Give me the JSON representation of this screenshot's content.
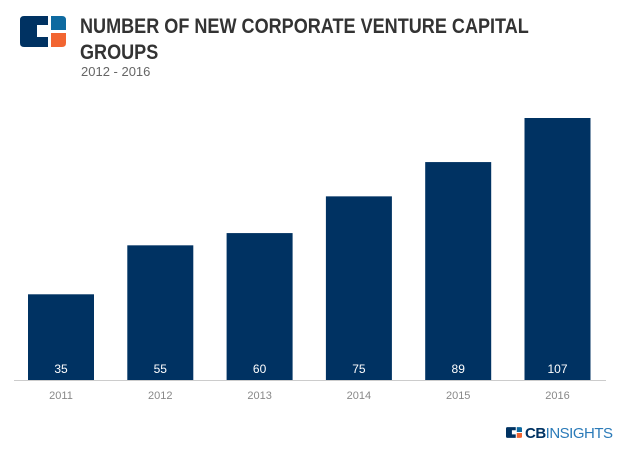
{
  "header": {
    "title_line1": "NUMBER OF NEW CORPORATE VENTURE CAPITAL",
    "title_line2": "GROUPS",
    "subtitle": "2012 - 2016"
  },
  "footer": {
    "brand_cb": "CB",
    "brand_insights": "INSIGHTS"
  },
  "colors": {
    "bar": "#003262",
    "logo_teal": "#0e6aa0",
    "logo_orange": "#f26531",
    "label": "#ffffff",
    "axis": "#888888"
  },
  "chart_data": {
    "type": "bar",
    "categories": [
      "2011",
      "2012",
      "2013",
      "2014",
      "2015",
      "2016"
    ],
    "values": [
      35,
      55,
      60,
      75,
      89,
      107
    ],
    "title": "NUMBER OF NEW CORPORATE VENTURE CAPITAL GROUPS",
    "subtitle": "2012 - 2016",
    "xlabel": "",
    "ylabel": "",
    "ylim": [
      0,
      107
    ],
    "grid": false,
    "legend": "none"
  }
}
